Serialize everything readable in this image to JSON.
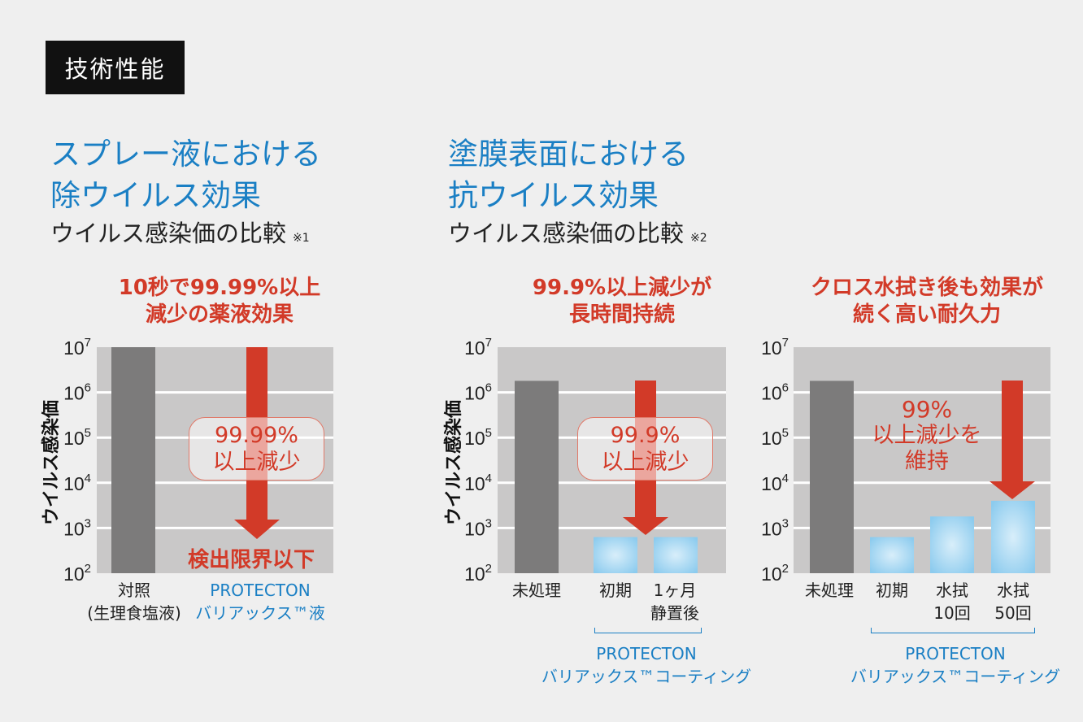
{
  "badge": "技術性能",
  "colors": {
    "accent_blue": "#1a7fc4",
    "accent_red": "#d23a28",
    "bar_gray": "#7c7b7b",
    "bar_blue": "#8ccbee"
  },
  "sections": [
    {
      "title_line1": "スプレー液における",
      "title_line2": "除ウイルス効果",
      "subtitle": "ウイルス感染価の比較",
      "note": "※1"
    },
    {
      "title_line1": "塗膜表面における",
      "title_line2": "抗ウイルス効果",
      "subtitle": "ウイルス感染価の比較",
      "note": "※2"
    }
  ],
  "panels": [
    {
      "headline1": "10秒で99.99%以上",
      "headline2": "減少の薬液効果",
      "ylabel": "ウイルス感染価",
      "callout1": "99.99%",
      "callout2": "以上減少",
      "bottom_note": "検出限界以下",
      "xlabels": [
        {
          "l1": "対照",
          "l2": "(生理食塩液)"
        },
        {
          "l1": "PROTECTON",
          "l2": "バリアックス™液"
        }
      ]
    },
    {
      "headline1": "99.9%以上減少が",
      "headline2": "長時間持続",
      "ylabel": "ウイルス感染価",
      "callout1": "99.9%",
      "callout2": "以上減少",
      "xlabels": [
        {
          "l1": "未処理"
        },
        {
          "l1": "初期"
        },
        {
          "l1": "1ヶ月",
          "l2": "静置後"
        }
      ],
      "group_label1": "PROTECTON",
      "group_label2": "バリアックス™コーティング"
    },
    {
      "headline1": "クロス水拭き後も効果が",
      "headline2": "続く高い耐久力",
      "callout1": "99%",
      "callout2": "以上減少を",
      "callout3": "維持",
      "xlabels": [
        {
          "l1": "未処理"
        },
        {
          "l1": "初期"
        },
        {
          "l1": "水拭",
          "l2": "10回"
        },
        {
          "l1": "水拭",
          "l2": "50回"
        }
      ],
      "group_label1": "PROTECTON",
      "group_label2": "バリアックス™コーティング"
    }
  ],
  "chart_data": [
    {
      "type": "bar",
      "yscale": "log",
      "ylim": [
        100,
        10000000
      ],
      "yticks": [
        "10^2",
        "10^3",
        "10^4",
        "10^5",
        "10^6",
        "10^7"
      ],
      "ylabel": "ウイルス感染価",
      "categories": [
        "対照(生理食塩液)",
        "PROTECTON バリアックス™液"
      ],
      "values": [
        10000000,
        null
      ],
      "annotation": "検出限界以下"
    },
    {
      "type": "bar",
      "yscale": "log",
      "ylim": [
        100,
        10000000
      ],
      "yticks": [
        "10^2",
        "10^3",
        "10^4",
        "10^5",
        "10^6",
        "10^7"
      ],
      "ylabel": "ウイルス感染価",
      "categories": [
        "未処理",
        "初期",
        "1ヶ月静置後"
      ],
      "values": [
        1800000,
        630,
        630
      ]
    },
    {
      "type": "bar",
      "yscale": "log",
      "ylim": [
        100,
        10000000
      ],
      "yticks": [
        "10^2",
        "10^3",
        "10^4",
        "10^5",
        "10^6",
        "10^7"
      ],
      "categories": [
        "未処理",
        "初期",
        "水拭10回",
        "水拭50回"
      ],
      "values": [
        1800000,
        630,
        1800,
        4000
      ]
    }
  ]
}
